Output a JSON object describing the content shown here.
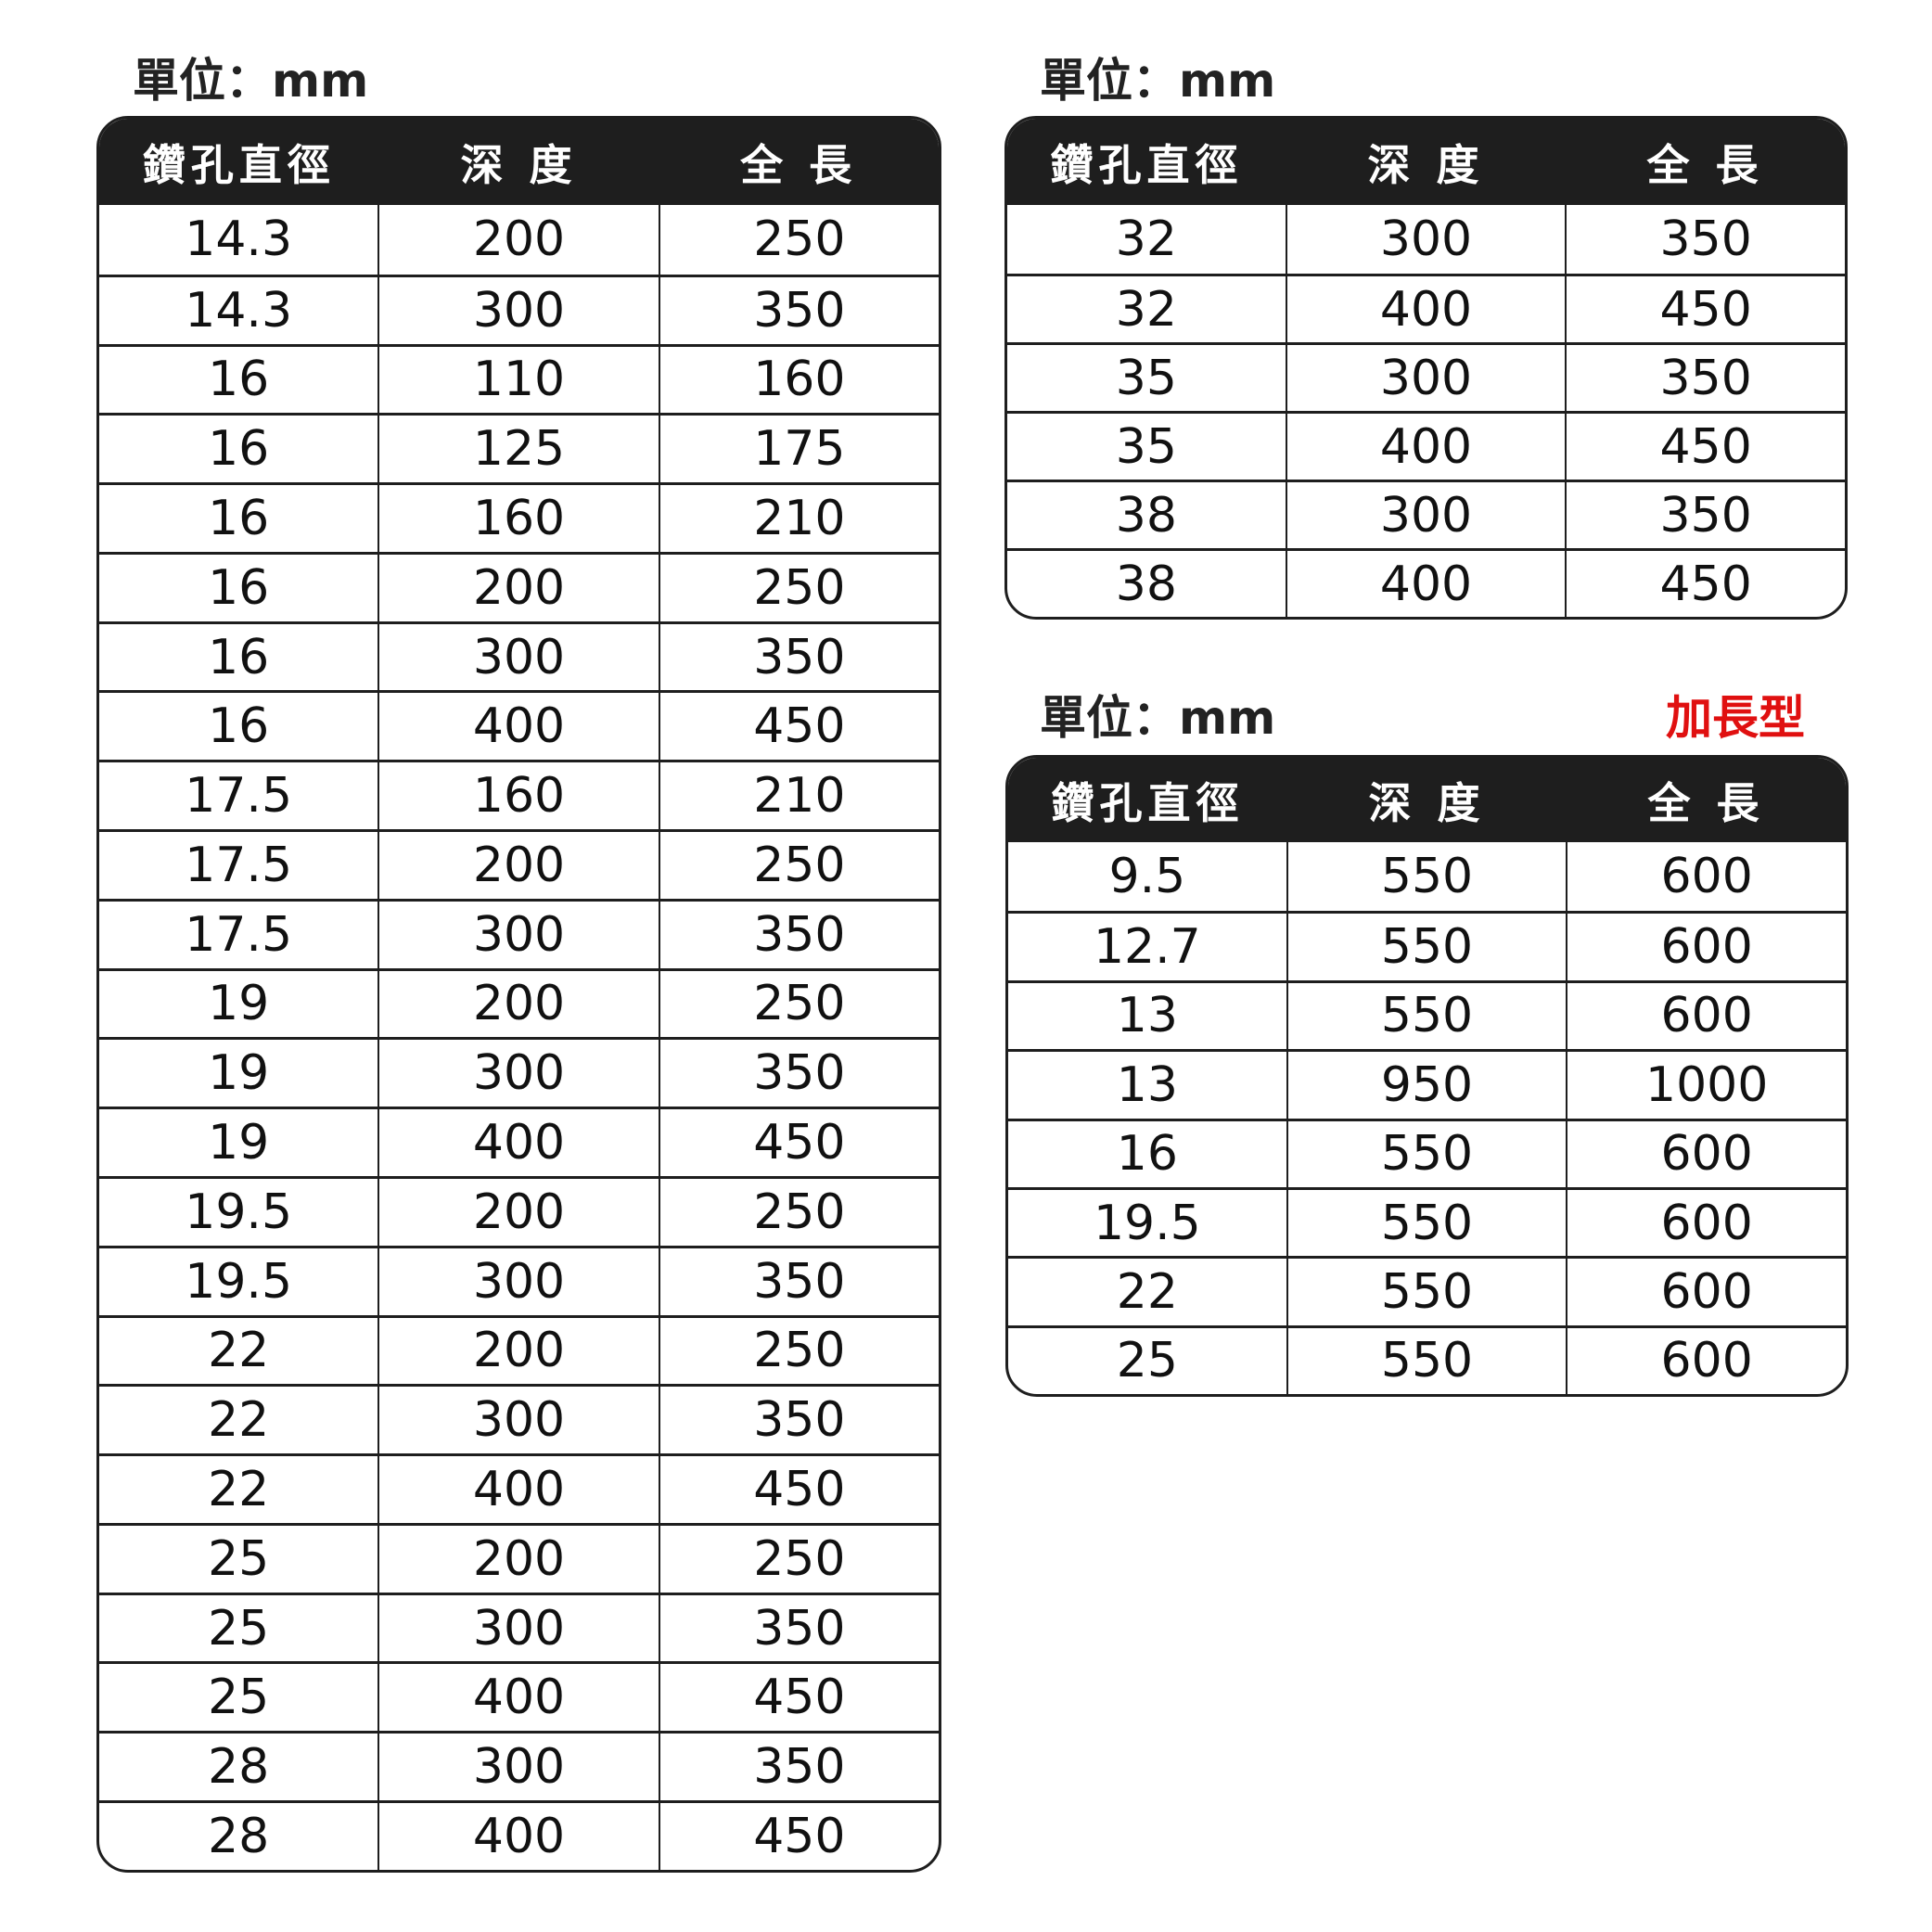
{
  "headers": [
    "鑽孔直徑",
    "深 度",
    "全 長"
  ],
  "tables": [
    {
      "unit_label": "單位：mm",
      "rows": [
        [
          "14.3",
          "200",
          "250"
        ],
        [
          "14.3",
          "300",
          "350"
        ],
        [
          "16",
          "110",
          "160"
        ],
        [
          "16",
          "125",
          "175"
        ],
        [
          "16",
          "160",
          "210"
        ],
        [
          "16",
          "200",
          "250"
        ],
        [
          "16",
          "300",
          "350"
        ],
        [
          "16",
          "400",
          "450"
        ],
        [
          "17.5",
          "160",
          "210"
        ],
        [
          "17.5",
          "200",
          "250"
        ],
        [
          "17.5",
          "300",
          "350"
        ],
        [
          "19",
          "200",
          "250"
        ],
        [
          "19",
          "300",
          "350"
        ],
        [
          "19",
          "400",
          "450"
        ],
        [
          "19.5",
          "200",
          "250"
        ],
        [
          "19.5",
          "300",
          "350"
        ],
        [
          "22",
          "200",
          "250"
        ],
        [
          "22",
          "300",
          "350"
        ],
        [
          "22",
          "400",
          "450"
        ],
        [
          "25",
          "200",
          "250"
        ],
        [
          "25",
          "300",
          "350"
        ],
        [
          "25",
          "400",
          "450"
        ],
        [
          "28",
          "300",
          "350"
        ],
        [
          "28",
          "400",
          "450"
        ]
      ]
    },
    {
      "unit_label": "單位：mm",
      "rows": [
        [
          "32",
          "300",
          "350"
        ],
        [
          "32",
          "400",
          "450"
        ],
        [
          "35",
          "300",
          "350"
        ],
        [
          "35",
          "400",
          "450"
        ],
        [
          "38",
          "300",
          "350"
        ],
        [
          "38",
          "400",
          "450"
        ]
      ]
    },
    {
      "unit_label": "單位：mm",
      "tag": "加長型",
      "tag_color": "#e01010",
      "rows": [
        [
          "9.5",
          "550",
          "600"
        ],
        [
          "12.7",
          "550",
          "600"
        ],
        [
          "13",
          "550",
          "600"
        ],
        [
          "13",
          "950",
          "1000"
        ],
        [
          "16",
          "550",
          "600"
        ],
        [
          "19.5",
          "550",
          "600"
        ],
        [
          "22",
          "550",
          "600"
        ],
        [
          "25",
          "550",
          "600"
        ]
      ]
    }
  ]
}
